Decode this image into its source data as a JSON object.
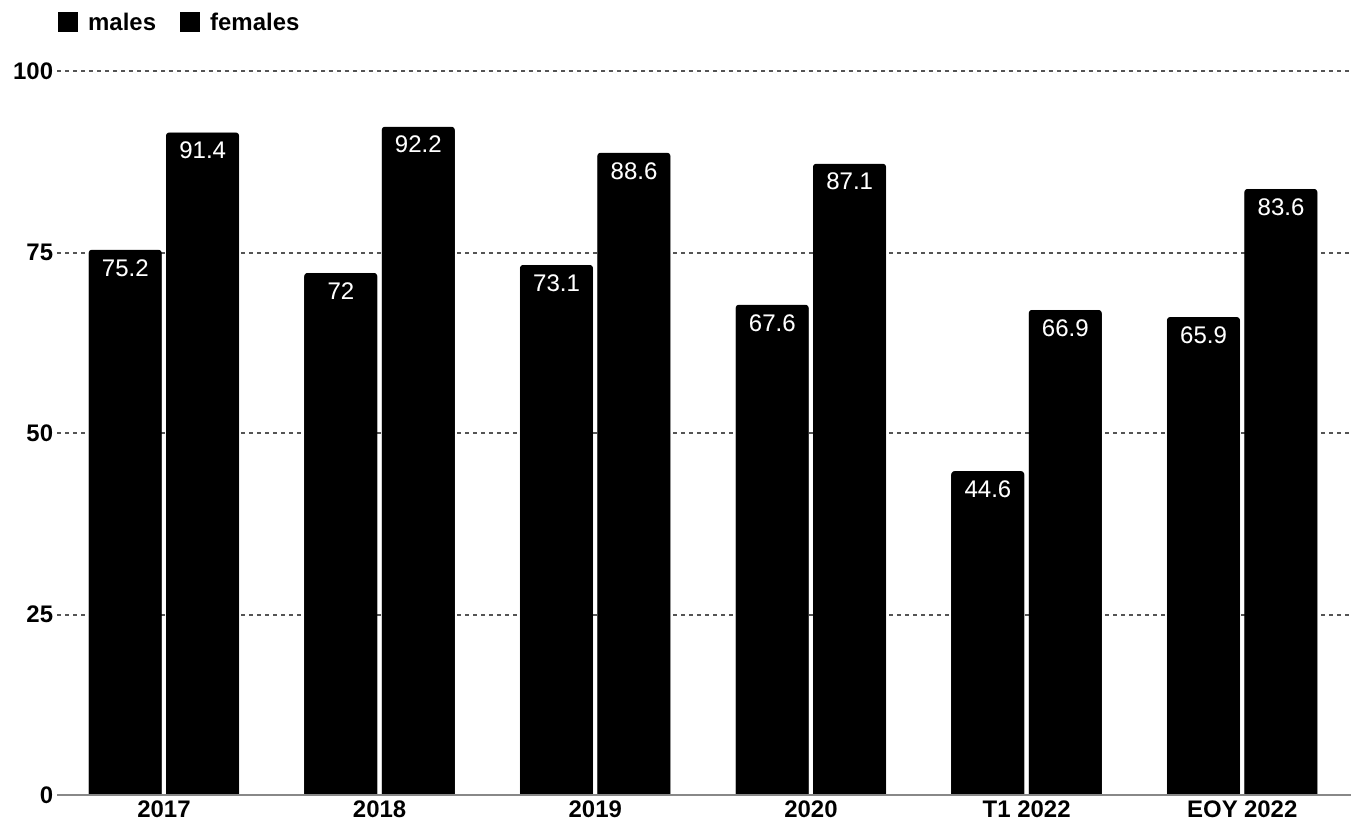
{
  "chart_data": {
    "type": "bar",
    "categories": [
      "2017",
      "2018",
      "2019",
      "2020",
      "T1 2022",
      "EOY 2022"
    ],
    "series": [
      {
        "name": "males",
        "color": "#000000",
        "values": [
          75.2,
          72,
          73.1,
          67.6,
          44.6,
          65.9
        ]
      },
      {
        "name": "females",
        "color": "#000000",
        "values": [
          91.4,
          92.2,
          88.6,
          87.1,
          66.9,
          83.6
        ]
      }
    ],
    "ylim": [
      0,
      100
    ],
    "yticks": [
      0,
      25,
      50,
      75,
      100
    ],
    "grid": "y",
    "legend": "top",
    "data_labels": true
  }
}
